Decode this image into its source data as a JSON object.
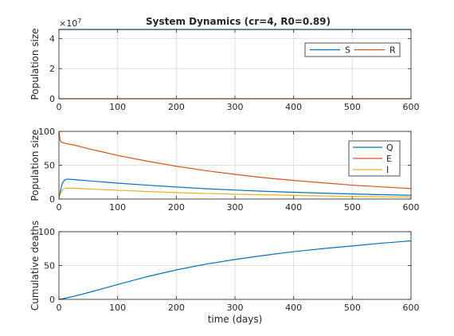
{
  "colors": {
    "blue": "#0072BD",
    "orange": "#D95319",
    "yellow": "#EDB120"
  },
  "chart_data": [
    {
      "type": "line",
      "title": "System Dynamics (cr=4, R0=0.89)",
      "xlabel": "",
      "ylabel": "Population size",
      "xlim": [
        0,
        600
      ],
      "ylim": [
        0,
        4.6
      ],
      "y_multiplier_label": "×10",
      "y_multiplier_exponent": "7",
      "xticks": [
        "0",
        "100",
        "200",
        "300",
        "400",
        "500",
        "600"
      ],
      "yticks": [
        "0",
        "2",
        "4"
      ],
      "grid": true,
      "legend": "top-right",
      "series": [
        {
          "name": "S",
          "color": "#0072BD",
          "x": [
            0,
            600
          ],
          "y": [
            4.6,
            4.6
          ]
        },
        {
          "name": "R",
          "color": "#D95319",
          "x": [
            0,
            600
          ],
          "y": [
            0,
            0
          ]
        }
      ]
    },
    {
      "type": "line",
      "xlabel": "",
      "ylabel": "Population size",
      "xlim": [
        0,
        600
      ],
      "ylim": [
        0,
        100
      ],
      "xticks": [
        "0",
        "100",
        "200",
        "300",
        "400",
        "500",
        "600"
      ],
      "yticks": [
        "0",
        "50",
        "100"
      ],
      "grid": true,
      "legend": "top-right",
      "series": [
        {
          "name": "Q",
          "color": "#0072BD",
          "x": [
            0,
            3,
            6,
            10,
            15,
            25,
            50,
            100,
            150,
            200,
            250,
            300,
            350,
            400,
            450,
            500,
            550,
            600
          ],
          "y": [
            0,
            14,
            24,
            28.5,
            29.5,
            28.8,
            27,
            23.5,
            20.5,
            17.8,
            15.3,
            13.3,
            11.5,
            10,
            8.7,
            7.5,
            6.5,
            5.5
          ]
        },
        {
          "name": "E",
          "color": "#D95319",
          "x": [
            0,
            2,
            4,
            8,
            15,
            25,
            50,
            100,
            150,
            200,
            250,
            300,
            350,
            400,
            450,
            500,
            550,
            600
          ],
          "y": [
            100,
            87,
            84,
            83,
            81.5,
            80,
            74.5,
            64.5,
            56,
            48.5,
            42,
            36.5,
            31.5,
            27.5,
            24,
            20.5,
            18,
            15.5
          ]
        },
        {
          "name": "I",
          "color": "#EDB120",
          "x": [
            0,
            3,
            6,
            10,
            20,
            50,
            100,
            150,
            200,
            250,
            300,
            350,
            400,
            450,
            500,
            550,
            600
          ],
          "y": [
            0,
            9,
            14,
            16,
            16.2,
            15,
            13,
            11.2,
            9.6,
            8.3,
            7.2,
            6.2,
            5.4,
            4.6,
            4,
            3.4,
            2.9
          ]
        }
      ]
    },
    {
      "type": "line",
      "xlabel": "time (days)",
      "ylabel": "Cumulative deaths",
      "xlim": [
        0,
        600
      ],
      "ylim": [
        0,
        100
      ],
      "xticks": [
        "0",
        "100",
        "200",
        "300",
        "400",
        "500",
        "600"
      ],
      "yticks": [
        "0",
        "50",
        "100"
      ],
      "grid": true,
      "legend": "none",
      "series": [
        {
          "name": "",
          "color": "#0072BD",
          "x": [
            0,
            10,
            25,
            50,
            75,
            100,
            150,
            200,
            250,
            300,
            350,
            400,
            450,
            500,
            550,
            600
          ],
          "y": [
            0,
            1.5,
            4.5,
            10,
            16,
            22,
            33.5,
            43.5,
            52,
            59,
            65,
            70.5,
            75,
            79,
            83,
            86.5
          ]
        }
      ]
    }
  ]
}
